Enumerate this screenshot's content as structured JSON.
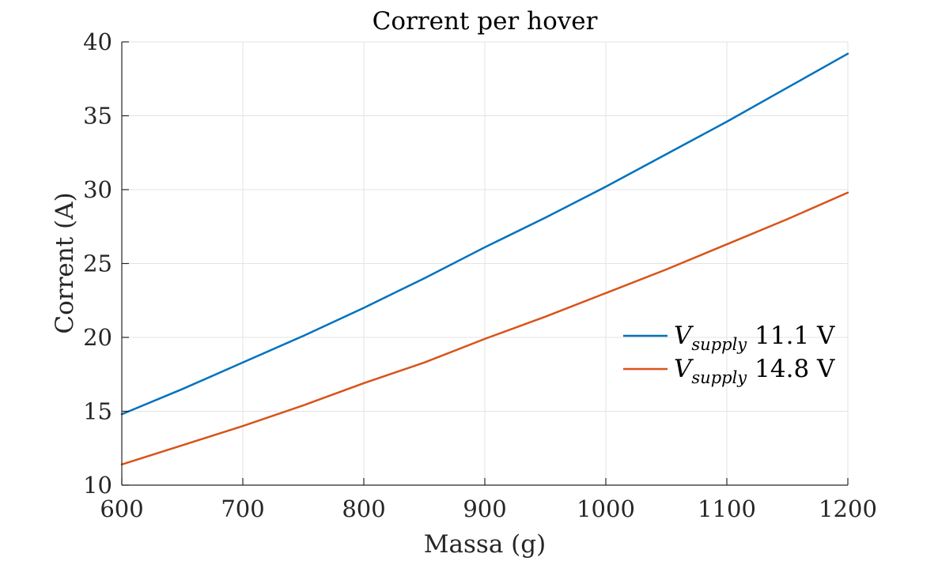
{
  "chart_data": {
    "type": "line",
    "title": "Corrent per hover",
    "xlabel": "Massa (g)",
    "ylabel": "Corrent (A)",
    "xlim": [
      600,
      1200
    ],
    "ylim": [
      10,
      40
    ],
    "xticks": [
      600,
      700,
      800,
      900,
      1000,
      1100,
      1200
    ],
    "yticks": [
      10,
      15,
      20,
      25,
      30,
      35,
      40
    ],
    "xtick_labels": [
      "600",
      "700",
      "800",
      "900",
      "1000",
      "1100",
      "1200"
    ],
    "ytick_labels": [
      "10",
      "15",
      "20",
      "25",
      "30",
      "35",
      "40"
    ],
    "grid": true,
    "legend_position": "right",
    "series": [
      {
        "name": "V_supply 11.1 V",
        "legend_symbol": "V",
        "legend_subscript": "supply",
        "legend_value": "11.1 V",
        "color": "#0072BD",
        "x": [
          600,
          650,
          700,
          750,
          800,
          850,
          900,
          950,
          1000,
          1050,
          1100,
          1150,
          1200
        ],
        "y": [
          14.8,
          16.5,
          18.3,
          20.1,
          22.0,
          24.0,
          26.1,
          28.1,
          30.2,
          32.4,
          34.6,
          36.9,
          39.2
        ]
      },
      {
        "name": "V_supply 14.8 V",
        "legend_symbol": "V",
        "legend_subscript": "supply",
        "legend_value": "14.8 V",
        "color": "#D95319",
        "x": [
          600,
          650,
          700,
          750,
          800,
          850,
          900,
          950,
          1000,
          1050,
          1100,
          1150,
          1200
        ],
        "y": [
          11.4,
          12.7,
          14.0,
          15.4,
          16.9,
          18.3,
          19.9,
          21.4,
          23.0,
          24.6,
          26.3,
          28.0,
          29.8
        ]
      }
    ]
  }
}
